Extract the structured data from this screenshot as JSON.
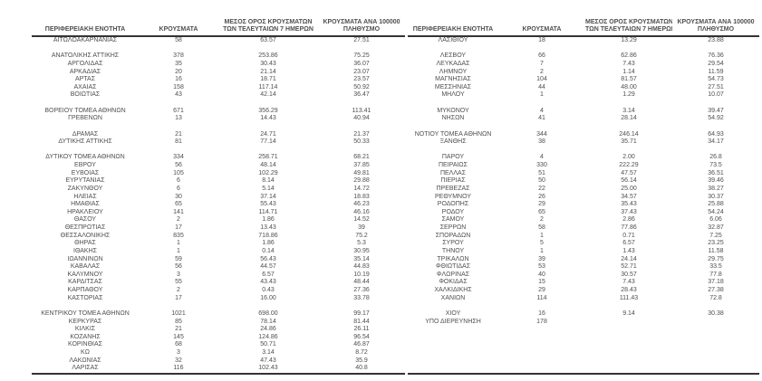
{
  "report": {
    "colors": {
      "background": "#ffffff",
      "text": "#4f4f4f",
      "rule": "#333333"
    },
    "columns": [
      {
        "lines": [
          "ΠΕΡΙΦΕΡΕΙΑΚΗ ΕΝΟΤΗΤΑ"
        ]
      },
      {
        "lines": [
          "ΚΡΟΥΣΜΑΤΑ"
        ]
      },
      {
        "lines": [
          "ΜΕΣΟΣ ΟΡΟΣ ΚΡΟΥΣΜΑΤΩΝ",
          "ΤΩΝ ΤΕΛΕΥΤΑΙΩΝ 7 ΗΜΕΡΩΝ"
        ]
      },
      {
        "lines": [
          "ΚΡΟΥΣΜΑΤΑ ΑΝΑ 100000",
          "ΠΛΗΘΥΣΜΟ"
        ]
      }
    ],
    "left_table": {
      "rows": [
        [
          "ΑΙΤΩΛΟΑΚΑΡΝΑΝΙΑΣ",
          "58",
          "63.57",
          "27.51"
        ],
        null,
        [
          "ΑΝΑΤΟΛΙΚΗΣ ΑΤΤΙΚΗΣ",
          "378",
          "253.86",
          "75.25"
        ],
        [
          "ΑΡΓΟΛΙΔΑΣ",
          "35",
          "30.43",
          "36.07"
        ],
        [
          "ΑΡΚΑΔΙΑΣ",
          "20",
          "21.14",
          "23.07"
        ],
        [
          "ΑΡΤΑΣ",
          "16",
          "18.71",
          "23.57"
        ],
        [
          "ΑΧΑΪΑΣ",
          "158",
          "117.14",
          "50.92"
        ],
        [
          "ΒΟΙΩΤΙΑΣ",
          "43",
          "42.14",
          "36.47"
        ],
        null,
        [
          "ΒΟΡΕΙΟΥ ΤΟΜΕΑ ΑΘΗΝΩΝ",
          "671",
          "356.29",
          "113.41"
        ],
        [
          "ΓΡΕΒΕΝΩΝ",
          "13",
          "14.43",
          "40.94"
        ],
        null,
        [
          "ΔΡΑΜΑΣ",
          "21",
          "24.71",
          "21.37"
        ],
        [
          "ΔΥΤΙΚΗΣ ΑΤΤΙΚΗΣ",
          "81",
          "77.14",
          "50.33"
        ],
        null,
        [
          "ΔΥΤΙΚΟΥ ΤΟΜΕΑ ΑΘΗΝΩΝ",
          "334",
          "258.71",
          "68.21"
        ],
        [
          "ΕΒΡΟΥ",
          "56",
          "48.14",
          "37.85"
        ],
        [
          "ΕΥΒΟΙΑΣ",
          "105",
          "102.29",
          "49.81"
        ],
        [
          "ΕΥΡΥΤΑΝΙΑΣ",
          "6",
          "8.14",
          "29.88"
        ],
        [
          "ΖΑΚΥΝΘΟΥ",
          "6",
          "5.14",
          "14.72"
        ],
        [
          "ΗΛΕΙΑΣ",
          "30",
          "37.14",
          "18.83"
        ],
        [
          "ΗΜΑΘΙΑΣ",
          "65",
          "55.43",
          "46.23"
        ],
        [
          "ΗΡΑΚΛΕΙΟΥ",
          "141",
          "114.71",
          "46.16"
        ],
        [
          "ΘΑΣΟΥ",
          "2",
          "1.86",
          "14.52"
        ],
        [
          "ΘΕΣΠΡΩΤΙΑΣ",
          "17",
          "13.43",
          "39"
        ],
        [
          "ΘΕΣΣΑΛΟΝΙΚΗΣ",
          "835",
          "718.86",
          "75.2"
        ],
        [
          "ΘΗΡΑΣ",
          "1",
          "1.86",
          "5.3"
        ],
        [
          "ΙΘΑΚΗΣ",
          "1",
          "0.14",
          "30.95"
        ],
        [
          "ΙΩΑΝΝΙΝΩΝ",
          "59",
          "56.43",
          "35.14"
        ],
        [
          "ΚΑΒΑΛΑΣ",
          "56",
          "44.57",
          "44.83"
        ],
        [
          "ΚΑΛΥΜΝΟΥ",
          "3",
          "6.57",
          "10.19"
        ],
        [
          "ΚΑΡΔΙΤΣΑΣ",
          "55",
          "43.43",
          "48.44"
        ],
        [
          "ΚΑΡΠΑΘΟΥ",
          "2",
          "0.43",
          "27.36"
        ],
        [
          "ΚΑΣΤΟΡΙΑΣ",
          "17",
          "16.00",
          "33.78"
        ],
        null,
        [
          "ΚΕΝΤΡΙΚΟΥ ΤΟΜΕΑ ΑΘΗΝΩΝ",
          "1021",
          "698.00",
          "99.17"
        ],
        [
          "ΚΕΡΚΥΡΑΣ",
          "85",
          "78.14",
          "81.44"
        ],
        [
          "ΚΙΛΚΙΣ",
          "21",
          "24.86",
          "26.11"
        ],
        [
          "ΚΟΖΑΝΗΣ",
          "145",
          "124.86",
          "96.54"
        ],
        [
          "ΚΟΡΙΝΘΙΑΣ",
          "68",
          "50.71",
          "46.87"
        ],
        [
          "ΚΩ",
          "3",
          "3.14",
          "8.72"
        ],
        [
          "ΛΑΚΩΝΙΑΣ",
          "32",
          "47.43",
          "35.9"
        ],
        [
          "ΛΑΡΙΣΑΣ",
          "116",
          "102.43",
          "40.8"
        ]
      ]
    },
    "right_table": {
      "rows": [
        [
          "ΛΑΣΙΘΙΟΥ",
          "18",
          "13.29",
          "23.88"
        ],
        null,
        [
          "ΛΕΣΒΟΥ",
          "66",
          "62.86",
          "76.36"
        ],
        [
          "ΛΕΥΚΑΔΑΣ",
          "7",
          "7.43",
          "29.54"
        ],
        [
          "ΛΗΜΝΟΥ",
          "2",
          "1.14",
          "11.59"
        ],
        [
          "ΜΑΓΝΗΣΙΑΣ",
          "104",
          "81.57",
          "54.73"
        ],
        [
          "ΜΕΣΣΗΝΙΑΣ",
          "44",
          "48.00",
          "27.51"
        ],
        [
          "ΜΗΛΟΥ",
          "1",
          "1.29",
          "10.07"
        ],
        null,
        [
          "ΜΥΚΟΝΟΥ",
          "4",
          "3.14",
          "39.47"
        ],
        [
          "ΝΗΣΩΝ",
          "41",
          "28.14",
          "54.92"
        ],
        null,
        [
          "ΝΟΤΙΟΥ ΤΟΜΕΑ ΑΘΗΝΩΝ",
          "344",
          "246.14",
          "64.93"
        ],
        [
          "ΞΑΝΘΗΣ",
          "38",
          "35.71",
          "34.17"
        ],
        null,
        [
          "ΠΑΡΟΥ",
          "4",
          "2.00",
          "26.8"
        ],
        [
          "ΠΕΙΡΑΙΩΣ",
          "330",
          "222.29",
          "73.5"
        ],
        [
          "ΠΕΛΛΑΣ",
          "51",
          "47.57",
          "36.51"
        ],
        [
          "ΠΙΕΡΙΑΣ",
          "50",
          "56.14",
          "39.46"
        ],
        [
          "ΠΡΕΒΕΖΑΣ",
          "22",
          "25.00",
          "38.27"
        ],
        [
          "ΡΕΘΥΜΝΟΥ",
          "26",
          "34.57",
          "30.37"
        ],
        [
          "ΡΟΔΟΠΗΣ",
          "29",
          "35.43",
          "25.88"
        ],
        [
          "ΡΟΔΟΥ",
          "65",
          "37.43",
          "54.24"
        ],
        [
          "ΣΑΜΟΥ",
          "2",
          "2.86",
          "6.06"
        ],
        [
          "ΣΕΡΡΩΝ",
          "58",
          "77.86",
          "32.87"
        ],
        [
          "ΣΠΟΡΑΔΩΝ",
          "1",
          "0.71",
          "7.25"
        ],
        [
          "ΣΥΡΟΥ",
          "5",
          "6.57",
          "23.25"
        ],
        [
          "ΤΗΝΟΥ",
          "1",
          "1.43",
          "11.58"
        ],
        [
          "ΤΡΙΚΑΛΩΝ",
          "39",
          "24.14",
          "29.75"
        ],
        [
          "ΦΘΙΩΤΙΔΑΣ",
          "53",
          "52.71",
          "33.5"
        ],
        [
          "ΦΛΩΡΙΝΑΣ",
          "40",
          "30.57",
          "77.8"
        ],
        [
          "ΦΟΚΙΔΑΣ",
          "15",
          "7.43",
          "37.18"
        ],
        [
          "ΧΑΛΚΙΔΙΚΗΣ",
          "29",
          "28.43",
          "27.38"
        ],
        [
          "ΧΑΝΙΩΝ",
          "114",
          "111.43",
          "72.8"
        ],
        null,
        [
          "ΧΙΟΥ",
          "16",
          "9.14",
          "30.38"
        ],
        [
          "ΥΠΟ ΔΙΕΡΕΥΝΗΣΗ",
          "178",
          "",
          ""
        ],
        null,
        null,
        null,
        null,
        null,
        null
      ]
    }
  }
}
